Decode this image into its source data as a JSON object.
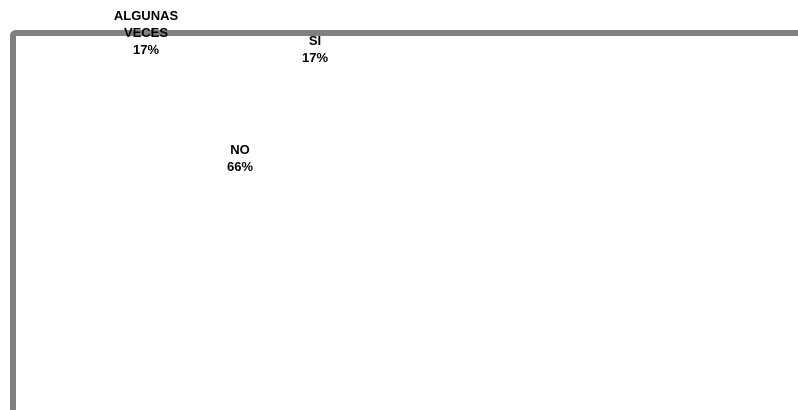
{
  "chart_data": {
    "type": "pie",
    "title": "",
    "slices": [
      {
        "label_lines": [
          "ALGUNAS",
          "VECES"
        ],
        "percent_label": "17%",
        "value": 17
      },
      {
        "label_lines": [
          "SI"
        ],
        "percent_label": "17%",
        "value": 17
      },
      {
        "label_lines": [
          "NO"
        ],
        "percent_label": "66%",
        "value": 66
      }
    ],
    "legend": "none"
  }
}
